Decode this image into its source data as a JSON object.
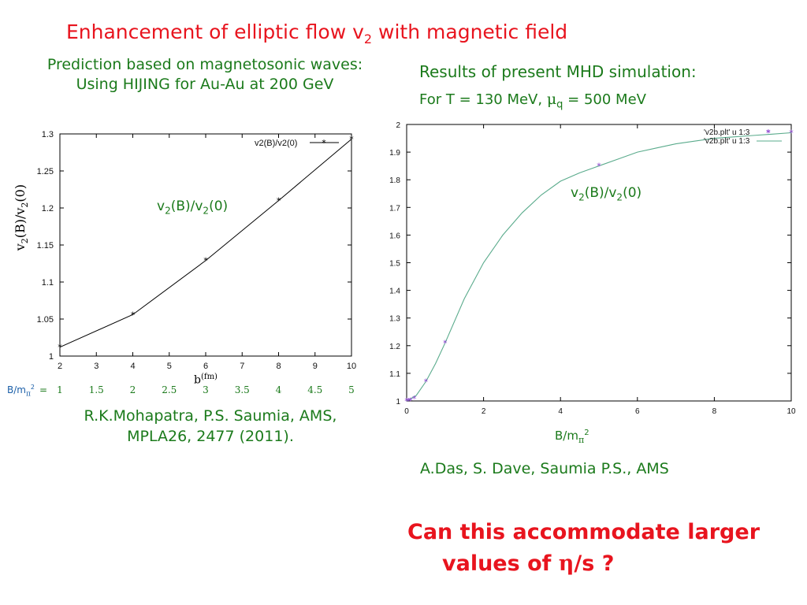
{
  "title": {
    "main": "Enhancement of elliptic flow v",
    "sub": "2",
    "rest": " with magnetic field"
  },
  "left": {
    "heading_line1": "Prediction based on magnetosonic waves:",
    "heading_line2": "Using HIJING for Au-Au at 200 GeV",
    "annotation": {
      "a": "v",
      "s1": "2",
      "b": "(B)/v",
      "s2": "2",
      "c": "(0)"
    },
    "ylabel": {
      "a": "v",
      "s1": "2",
      "b": "(B)/v",
      "s2": "2",
      "c": "(0)"
    },
    "xlabel": {
      "a": "b",
      "unit": "(fm)"
    },
    "bm_row": {
      "label": "B/m",
      "sub": "π",
      "sup": "2",
      "eq": "=",
      "values": [
        "1",
        "1.5",
        "2",
        "2.5",
        "3",
        "3.5",
        "4",
        "4.5",
        "5"
      ]
    },
    "reference_line1": "R.K.Mohapatra, P.S. Saumia, AMS,",
    "reference_line2": "MPLA26, 2477 (2011)."
  },
  "right": {
    "heading_line1": "Results of present MHD simulation:",
    "heading_line2": {
      "a": "For T = 130 MeV,  ",
      "mu": "μ",
      "q": "q",
      "b": "  = 500 MeV"
    },
    "annotation": {
      "a": "v",
      "s1": "2",
      "b": "(B)/v",
      "s2": "2",
      "c": "(0)"
    },
    "xlabel": {
      "a": "B/m",
      "sub": "π",
      "sup": "2"
    },
    "reference": "A.Das, S. Dave, Saumia P.S., AMS"
  },
  "question_line1": "Can this accommodate larger",
  "question_line2": {
    "a": "values of ",
    "eta": "η",
    "b": "/s ?"
  },
  "colors": {
    "accent": "#e8141e",
    "text_green": "#1b7a1b",
    "curve": "#5aab8c",
    "points": "#8a3fd0"
  },
  "chart_data": [
    {
      "type": "line",
      "x": [
        2,
        4,
        6,
        8,
        10
      ],
      "series": [
        {
          "name": "v2(B)/v2(0)",
          "values": [
            1.012,
            1.056,
            1.129,
            1.21,
            1.293
          ]
        }
      ],
      "xlim": [
        2,
        10
      ],
      "ylim": [
        1,
        1.3
      ],
      "xticks": [
        "2",
        "3",
        "4",
        "5",
        "6",
        "7",
        "8",
        "9",
        "10"
      ],
      "yticks": [
        "1",
        "1.05",
        "1.1",
        "1.15",
        "1.2",
        "1.25",
        "1.3"
      ],
      "legend": "top-right",
      "grid": false
    },
    {
      "type": "scatter",
      "x_points": [
        0,
        0.05,
        0.1,
        0.2,
        0.5,
        1.0,
        5.0,
        9.4,
        10
      ],
      "points": [
        1.0,
        1.0005,
        1.002,
        1.008,
        1.07,
        1.21,
        1.85,
        1.97,
        1.97
      ],
      "curve": {
        "x": [
          0,
          0.25,
          0.5,
          0.75,
          1,
          1.5,
          2,
          2.5,
          3,
          3.5,
          4,
          4.5,
          5,
          5.5,
          6,
          6.5,
          7,
          7.5,
          8,
          8.5,
          9,
          9.5,
          10
        ],
        "y": [
          1.0,
          1.02,
          1.07,
          1.135,
          1.21,
          1.37,
          1.5,
          1.6,
          1.68,
          1.745,
          1.795,
          1.825,
          1.85,
          1.875,
          1.9,
          1.915,
          1.93,
          1.94,
          1.95,
          1.955,
          1.96,
          1.965,
          1.97
        ]
      },
      "series": [
        {
          "name": "'v2b.plt' u 1:3"
        },
        {
          "name": "'v2b.plt' u 1:3"
        }
      ],
      "xlim": [
        0,
        10
      ],
      "ylim": [
        1,
        2
      ],
      "xticks": [
        "0",
        "2",
        "4",
        "6",
        "8",
        "10"
      ],
      "yticks": [
        "1",
        "1.1",
        "1.2",
        "1.3",
        "1.4",
        "1.5",
        "1.6",
        "1.7",
        "1.8",
        "1.9",
        "2"
      ],
      "legend": "top-right",
      "grid": false
    }
  ]
}
